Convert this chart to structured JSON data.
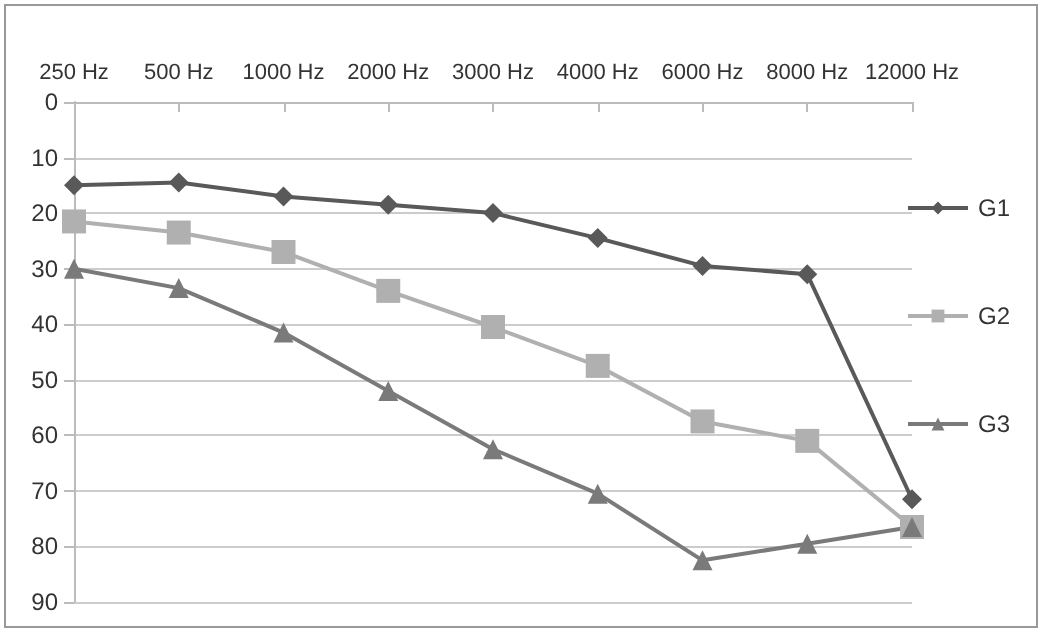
{
  "chart_data": {
    "type": "line",
    "categories": [
      "250 Hz",
      "500 Hz",
      "1000 Hz",
      "2000 Hz",
      "3000 Hz",
      "4000 Hz",
      "6000 Hz",
      "8000 Hz",
      "12000 Hz"
    ],
    "series": [
      {
        "name": "G1",
        "color": "#595959",
        "marker": "diamond",
        "values": [
          15,
          14.5,
          17,
          18.5,
          20,
          24.5,
          29.5,
          31,
          71.5
        ]
      },
      {
        "name": "G2",
        "color": "#b0b0b0",
        "marker": "square",
        "values": [
          21.5,
          23.5,
          27,
          34,
          40.5,
          47.5,
          57.5,
          61,
          76.5
        ]
      },
      {
        "name": "G3",
        "color": "#7a7a7a",
        "marker": "triangle",
        "values": [
          30,
          33.5,
          41.5,
          52,
          62.5,
          70.5,
          82.5,
          79.5,
          76.5
        ]
      }
    ],
    "ylim": [
      90,
      0
    ],
    "yticks": [
      0,
      10,
      20,
      30,
      40,
      50,
      60,
      70,
      80,
      90
    ],
    "grid": "y",
    "legend": "right",
    "line_style": "solid"
  }
}
